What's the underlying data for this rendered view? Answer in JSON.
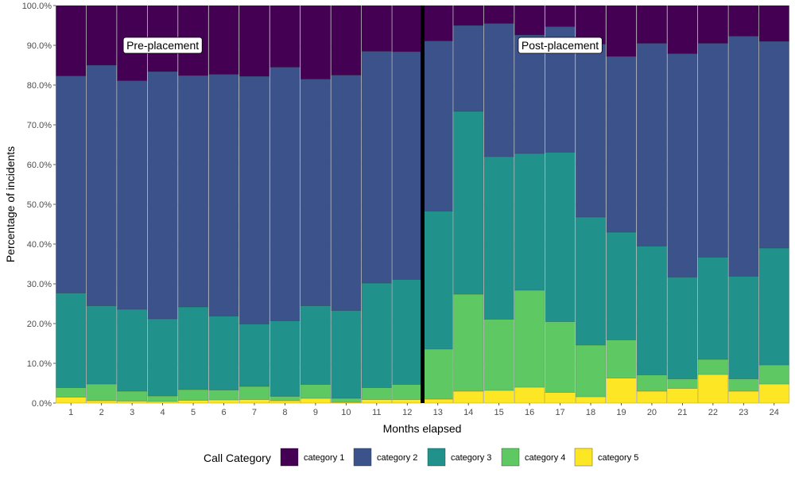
{
  "chart_data": {
    "type": "bar",
    "stacked": true,
    "percent": true,
    "categories": [
      "1",
      "2",
      "3",
      "4",
      "5",
      "6",
      "7",
      "8",
      "9",
      "10",
      "11",
      "12",
      "13",
      "14",
      "15",
      "16",
      "17",
      "18",
      "19",
      "20",
      "21",
      "22",
      "23",
      "24"
    ],
    "series": [
      {
        "name": "category 5",
        "color": "#fde725",
        "values": [
          1.5,
          0.6,
          0.5,
          0.4,
          0.7,
          0.8,
          0.9,
          0.6,
          1.2,
          0.2,
          0.9,
          0.9,
          1.0,
          3.0,
          3.2,
          4.0,
          2.7,
          1.6,
          6.3,
          3.0,
          3.7,
          7.2,
          3.0,
          4.8
        ]
      },
      {
        "name": "category 4",
        "color": "#5ec962",
        "values": [
          2.4,
          4.2,
          2.5,
          1.4,
          2.7,
          2.5,
          3.3,
          1.1,
          3.5,
          1.0,
          3.0,
          3.8,
          12.6,
          24.4,
          17.9,
          24.4,
          17.8,
          13.0,
          9.6,
          4.1,
          2.4,
          3.8,
          3.1,
          4.8
        ]
      },
      {
        "name": "category 3",
        "color": "#21918c",
        "values": [
          23.8,
          19.7,
          20.6,
          19.4,
          20.8,
          18.6,
          15.7,
          19.0,
          19.8,
          22.1,
          26.3,
          26.4,
          34.7,
          46.0,
          40.9,
          34.4,
          42.6,
          32.2,
          27.1,
          32.4,
          25.6,
          25.7,
          25.8,
          29.4
        ]
      },
      {
        "name": "category 2",
        "color": "#3b528b",
        "values": [
          54.6,
          60.5,
          57.5,
          62.2,
          58.2,
          60.8,
          62.3,
          63.8,
          57.0,
          59.2,
          58.3,
          57.3,
          42.8,
          21.6,
          33.5,
          29.8,
          31.6,
          43.5,
          44.2,
          51.0,
          56.2,
          53.8,
          60.4,
          52.0
        ]
      },
      {
        "name": "category 1",
        "color": "#440154",
        "values": [
          17.7,
          15.0,
          18.9,
          16.6,
          17.6,
          17.3,
          17.8,
          15.5,
          18.5,
          17.5,
          11.5,
          11.6,
          8.9,
          5.0,
          4.5,
          7.4,
          5.3,
          9.7,
          12.8,
          9.5,
          12.1,
          9.5,
          7.7,
          9.0
        ]
      }
    ],
    "ylim": [
      0,
      100
    ],
    "yticks": [
      "0.0%",
      "10.0%",
      "20.0%",
      "30.0%",
      "40.0%",
      "50.0%",
      "60.0%",
      "70.0%",
      "80.0%",
      "90.0%",
      "100.0%"
    ],
    "xlabel": "Months elapsed",
    "ylabel": "Percentage of incidents",
    "legend_title": "Call Category",
    "legend_position": "bottom",
    "legend_order": [
      "category 1",
      "category 2",
      "category 3",
      "category 4",
      "category 5"
    ],
    "divider_after_category": "12",
    "annotations": [
      {
        "text": "Pre-placement",
        "at_category": "4",
        "y": 90
      },
      {
        "text": "Post-placement",
        "at_category": "17",
        "y": 90
      }
    ],
    "grid": true
  }
}
